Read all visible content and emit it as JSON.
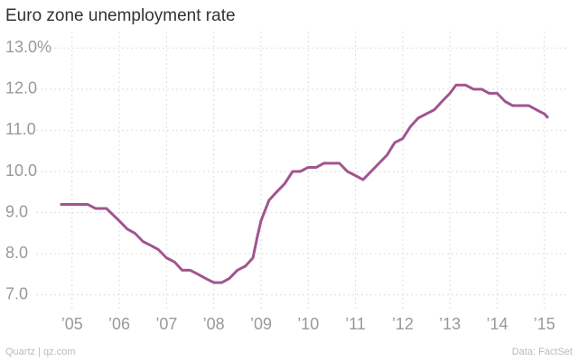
{
  "chart_data": {
    "type": "line",
    "title": "Euro zone unemployment rate",
    "source": "Data: FactSet",
    "credit": "Quartz | qz.com",
    "x": [
      2004.75,
      2004.92,
      2005.08,
      2005.25,
      2005.33,
      2005.5,
      2005.73,
      2006.0,
      2006.17,
      2006.33,
      2006.5,
      2006.67,
      2006.83,
      2007.0,
      2007.17,
      2007.33,
      2007.5,
      2007.67,
      2007.83,
      2008.0,
      2008.17,
      2008.33,
      2008.5,
      2008.67,
      2008.83,
      2008.92,
      2009.0,
      2009.17,
      2009.33,
      2009.5,
      2009.67,
      2009.83,
      2010.0,
      2010.17,
      2010.33,
      2010.5,
      2010.66,
      2010.83,
      2011.0,
      2011.16,
      2011.33,
      2011.5,
      2011.67,
      2011.83,
      2012.0,
      2012.17,
      2012.33,
      2012.5,
      2012.67,
      2012.83,
      2013.0,
      2013.13,
      2013.33,
      2013.5,
      2013.67,
      2013.83,
      2014.0,
      2014.17,
      2014.33,
      2014.5,
      2014.67,
      2014.83,
      2015.0,
      2015.08
    ],
    "series": [
      {
        "name": "Unemployment rate",
        "color": "#a0558f",
        "values": [
          9.2,
          9.2,
          9.2,
          9.2,
          9.2,
          9.1,
          9.1,
          8.8,
          8.6,
          8.5,
          8.3,
          8.2,
          8.1,
          7.9,
          7.8,
          7.6,
          7.6,
          7.5,
          7.4,
          7.3,
          7.3,
          7.4,
          7.6,
          7.7,
          7.9,
          8.4,
          8.8,
          9.3,
          9.5,
          9.7,
          10.0,
          10.0,
          10.1,
          10.1,
          10.2,
          10.2,
          10.2,
          10.0,
          9.9,
          9.8,
          10.0,
          10.2,
          10.4,
          10.7,
          10.8,
          11.1,
          11.3,
          11.4,
          11.5,
          11.7,
          11.9,
          12.1,
          12.1,
          12.0,
          12.0,
          11.9,
          11.9,
          11.7,
          11.6,
          11.6,
          11.6,
          11.5,
          11.4,
          11.3
        ]
      }
    ],
    "xlim": [
      2004.24,
      2015.52
    ],
    "xticks": [
      {
        "value": 2005,
        "label": "’05"
      },
      {
        "value": 2006,
        "label": "’06"
      },
      {
        "value": 2007,
        "label": "’07"
      },
      {
        "value": 2008,
        "label": "’08"
      },
      {
        "value": 2009,
        "label": "’09"
      },
      {
        "value": 2010,
        "label": "’10"
      },
      {
        "value": 2011,
        "label": "’11"
      },
      {
        "value": 2012,
        "label": "’12"
      },
      {
        "value": 2013,
        "label": "’13"
      },
      {
        "value": 2014,
        "label": "’14"
      },
      {
        "value": 2015,
        "label": "’15"
      }
    ],
    "ylim": [
      6.6,
      13.4
    ],
    "yticks": [
      {
        "value": 7,
        "label": "7.0"
      },
      {
        "value": 8,
        "label": "8.0"
      },
      {
        "value": 9,
        "label": "9.0"
      },
      {
        "value": 10,
        "label": "10.0"
      },
      {
        "value": 11,
        "label": "11.0"
      },
      {
        "value": 12,
        "label": "12.0"
      },
      {
        "value": 13,
        "label": "13.0%"
      }
    ],
    "grid": true
  }
}
